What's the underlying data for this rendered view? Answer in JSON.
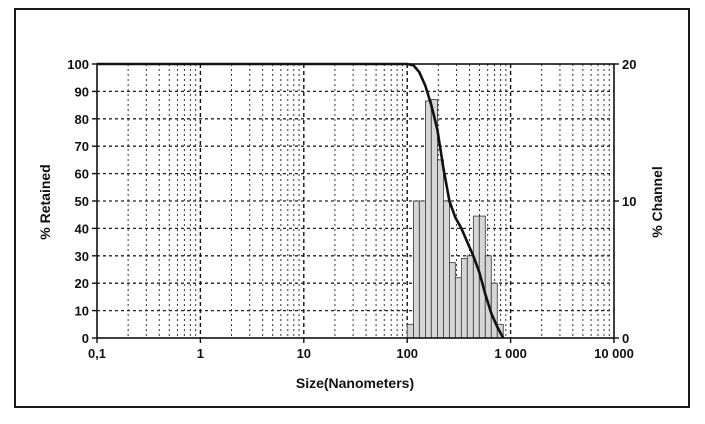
{
  "chart_data": {
    "type": "bar+line",
    "title": "",
    "xlabel": "Size(Nanometers)",
    "ylabel_left": "% Retained",
    "ylabel_right": "% Channel",
    "x_scale": "log",
    "xlim": [
      0.1,
      10000
    ],
    "ylim_left": [
      0,
      100
    ],
    "ylim_right": [
      0,
      20
    ],
    "x_tick_labels": [
      "0,1",
      "1",
      "10",
      "100",
      "1 000",
      "10 000"
    ],
    "x_tick_values": [
      0.1,
      1,
      10,
      100,
      1000,
      10000
    ],
    "y_left_ticks": [
      "0",
      "10",
      "20",
      "30",
      "40",
      "50",
      "60",
      "70",
      "80",
      "90",
      "100"
    ],
    "y_right_ticks": [
      "0",
      "10",
      "20"
    ],
    "grid": true,
    "histogram": {
      "name": "% Channel",
      "bins": [
        {
          "x0": 100,
          "x1": 115,
          "value": 1
        },
        {
          "x0": 115,
          "x1": 131,
          "value": 10
        },
        {
          "x0": 131,
          "x1": 150,
          "value": 10
        },
        {
          "x0": 150,
          "x1": 171,
          "value": 17.3
        },
        {
          "x0": 171,
          "x1": 196,
          "value": 17.4
        },
        {
          "x0": 196,
          "x1": 224,
          "value": 13
        },
        {
          "x0": 224,
          "x1": 256,
          "value": 10
        },
        {
          "x0": 256,
          "x1": 292,
          "value": 5.5
        },
        {
          "x0": 292,
          "x1": 334,
          "value": 4.4
        },
        {
          "x0": 334,
          "x1": 381,
          "value": 5.8
        },
        {
          "x0": 381,
          "x1": 436,
          "value": 6
        },
        {
          "x0": 436,
          "x1": 498,
          "value": 8.9
        },
        {
          "x0": 498,
          "x1": 569,
          "value": 8.9
        },
        {
          "x0": 569,
          "x1": 650,
          "value": 6
        },
        {
          "x0": 650,
          "x1": 743,
          "value": 4
        },
        {
          "x0": 743,
          "x1": 849,
          "value": 1
        }
      ]
    },
    "cumulative": {
      "name": "% Retained",
      "points": [
        [
          0.1,
          100
        ],
        [
          100,
          100
        ],
        [
          115,
          99.5
        ],
        [
          131,
          97
        ],
        [
          150,
          92
        ],
        [
          171,
          85
        ],
        [
          196,
          76
        ],
        [
          224,
          62
        ],
        [
          256,
          50
        ],
        [
          292,
          44
        ],
        [
          334,
          40
        ],
        [
          381,
          35
        ],
        [
          436,
          30
        ],
        [
          498,
          24
        ],
        [
          569,
          16
        ],
        [
          650,
          9
        ],
        [
          743,
          4
        ],
        [
          849,
          0
        ]
      ]
    }
  }
}
